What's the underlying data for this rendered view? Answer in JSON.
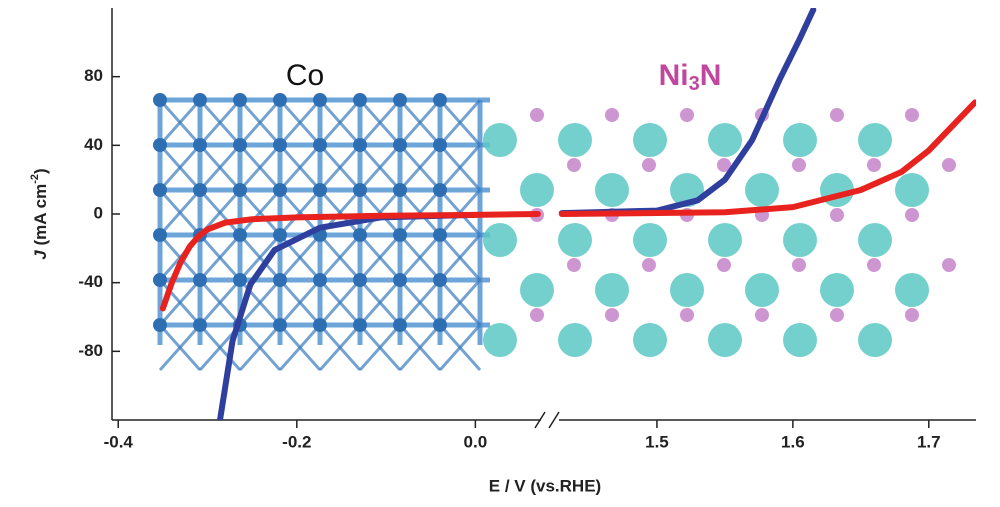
{
  "chart_data": {
    "type": "line",
    "x_label": "E / V (vs.RHE)",
    "y_label": [
      "J",
      " (mA cm",
      "-2",
      ")"
    ],
    "ylim": [
      -120,
      120
    ],
    "yticks": [
      -80,
      -40,
      0,
      40,
      80
    ],
    "x_segments": [
      {
        "xlim": [
          -0.407,
          0.078
        ],
        "xticks": [
          -0.4,
          -0.2,
          {
            "value": 0,
            "label": "0.0"
          }
        ]
      },
      {
        "xlim": [
          1.425,
          1.734
        ],
        "xticks": [
          1.5,
          1.6,
          1.7
        ]
      }
    ],
    "annotations": [
      {
        "text": [
          "Co"
        ],
        "color": "#111111"
      },
      {
        "text": [
          "Ni",
          "3",
          "N"
        ],
        "color": "#c0479e"
      }
    ],
    "series": [
      {
        "color": "#2f3f9e",
        "segment": 0,
        "x": [
          -0.286,
          -0.272,
          -0.252,
          -0.225,
          -0.174,
          -0.106,
          0.0
        ],
        "y": [
          -120,
          -74,
          -41,
          -21,
          -8,
          -2,
          -0.5
        ]
      },
      {
        "color": "#e8231f",
        "segment": 0,
        "x": [
          -0.35,
          -0.34,
          -0.33,
          -0.32,
          -0.31,
          -0.3,
          -0.28,
          -0.25,
          -0.2,
          -0.1,
          0.0,
          0.07
        ],
        "y": [
          -55,
          -40,
          -28,
          -19,
          -13,
          -9,
          -5,
          -3,
          -2,
          -1,
          -0.5,
          0
        ]
      },
      {
        "color": "#2f3f9e",
        "segment": 1,
        "x": [
          1.43,
          1.5,
          1.53,
          1.55,
          1.57,
          1.59,
          1.605,
          1.615
        ],
        "y": [
          0.5,
          2,
          8,
          20,
          43,
          78,
          102,
          119
        ]
      },
      {
        "color": "#e8231f",
        "segment": 1,
        "x": [
          1.43,
          1.55,
          1.6,
          1.65,
          1.68,
          1.7,
          1.734
        ],
        "y": [
          0,
          1,
          4,
          14,
          24.5,
          37,
          65
        ]
      }
    ]
  }
}
